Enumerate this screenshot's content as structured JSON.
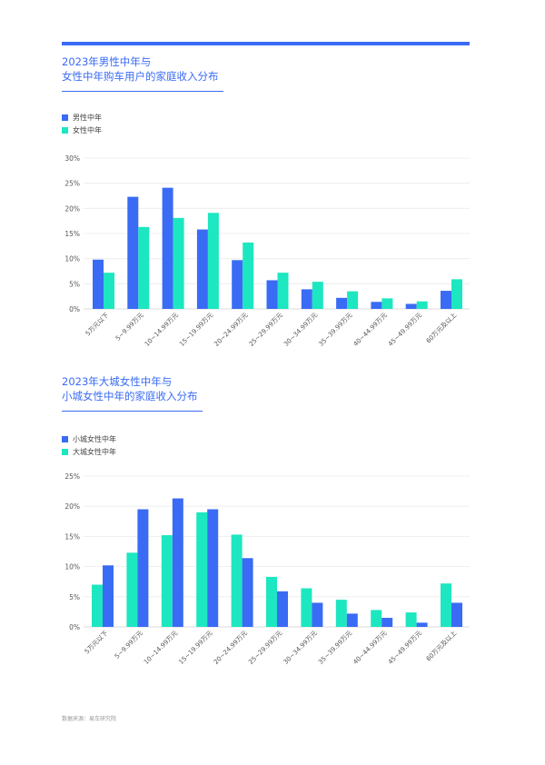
{
  "colors": {
    "accent": "#3a6bf5",
    "blue": "#3a6bf5",
    "teal": "#1de7c0"
  },
  "source_note": "数据来源：易车研究院",
  "chart_data": [
    {
      "type": "bar",
      "title_line1": "2023年男性中年与",
      "title_line2": "女性中年购车用户的家庭收入分布",
      "categories": [
        "5万元以下",
        "5~9.99万元",
        "10~14.99万元",
        "15~19.99万元",
        "20~24.99万元",
        "25~29.99万元",
        "30~34.99万元",
        "35~39.99万元",
        "40~44.99万元",
        "45~49.99万元",
        "60万元及以上"
      ],
      "series": [
        {
          "name": "男性中年",
          "color": "#3a6bf5",
          "values": [
            9.8,
            22.3,
            24.1,
            15.8,
            9.7,
            5.7,
            3.9,
            2.2,
            1.4,
            1.0,
            3.6
          ]
        },
        {
          "name": "女性中年",
          "color": "#1de7c0",
          "values": [
            7.2,
            16.3,
            18.1,
            19.1,
            13.2,
            7.2,
            5.4,
            3.5,
            2.1,
            1.5,
            5.9
          ]
        }
      ],
      "ylim": [
        0,
        30
      ],
      "yticks": [
        "0%",
        "5%",
        "10%",
        "15%",
        "20%",
        "25%",
        "30%"
      ],
      "ytick_values": [
        0,
        5,
        10,
        15,
        20,
        25,
        30
      ],
      "grid": true,
      "legend_position": "top-left"
    },
    {
      "type": "bar",
      "title_line1": "2023年大城女性中年与",
      "title_line2": "小城女性中年的家庭收入分布",
      "categories": [
        "5万元以下",
        "5~9.99万元",
        "10~14.99万元",
        "15~19.99万元",
        "20~24.99万元",
        "25~29.99万元",
        "30~34.99万元",
        "35~39.99万元",
        "40~44.99万元",
        "45~49.99万元",
        "60万元及以上"
      ],
      "series": [
        {
          "name": "大城女性中年",
          "color": "#1de7c0",
          "values": [
            7.0,
            12.3,
            15.2,
            19.0,
            15.3,
            8.3,
            6.4,
            4.5,
            2.8,
            2.4,
            7.2
          ]
        },
        {
          "name": "小城女性中年",
          "color": "#3a6bf5",
          "values": [
            10.2,
            19.5,
            21.3,
            19.5,
            11.4,
            5.9,
            4.0,
            2.2,
            1.5,
            0.7,
            4.0
          ]
        }
      ],
      "legend_order": [
        "小城女性中年",
        "大城女性中年"
      ],
      "ylim": [
        0,
        25
      ],
      "yticks": [
        "0%",
        "5%",
        "10%",
        "15%",
        "20%",
        "25%"
      ],
      "ytick_values": [
        0,
        5,
        10,
        15,
        20,
        25
      ],
      "grid": true,
      "legend_position": "top-left"
    }
  ]
}
